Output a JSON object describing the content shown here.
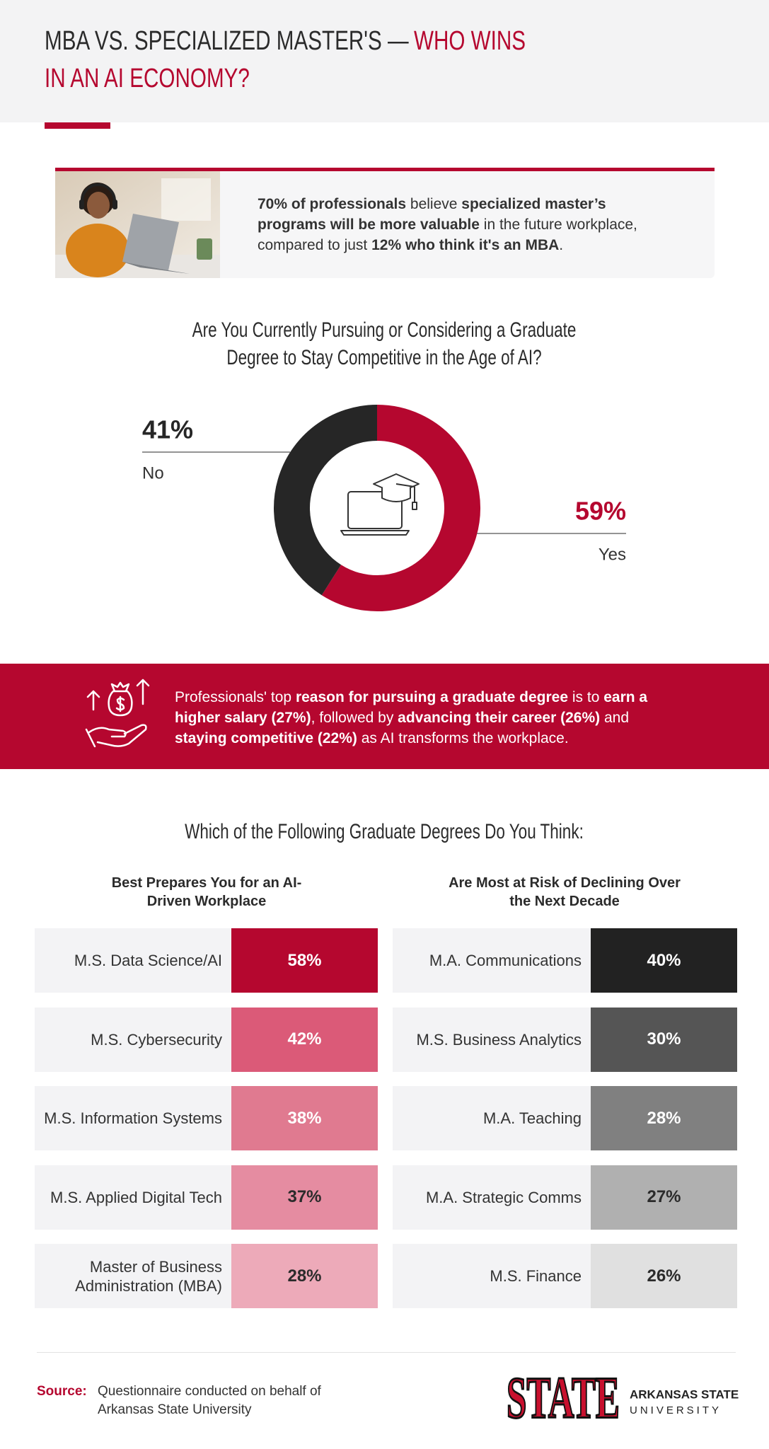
{
  "header": {
    "title_main": "MBA VS. SPECIALIZED MASTER'S —",
    "title_highlight": "WHO WINS IN AN AI ECONOMY?"
  },
  "stat_box": {
    "text": [
      {
        "text": "70% of professionals",
        "bold": true
      },
      {
        "text": " believe ",
        "bold": false
      },
      {
        "text": "specialized master’s programs will be more valuable",
        "bold": true
      },
      {
        "text": " in the future workplace, compared to just ",
        "bold": false
      },
      {
        "text": "12% who think it's an MBA",
        "bold": true
      },
      {
        "text": ".",
        "bold": false
      }
    ]
  },
  "reason_box": {
    "text": [
      {
        "text": "Professionals' top ",
        "bold": false
      },
      {
        "text": "reason for pursuing a graduate degree",
        "bold": true
      },
      {
        "text": " is to ",
        "bold": false
      },
      {
        "text": "earn a higher salary (27%)",
        "bold": true
      },
      {
        "text": ", followed by ",
        "bold": false
      },
      {
        "text": "advancing their career (26%)",
        "bold": true
      },
      {
        "text": " and ",
        "bold": false
      },
      {
        "text": "staying competitive (22%)",
        "bold": true
      },
      {
        "text": " as AI transforms the workplace.",
        "bold": false
      }
    ]
  },
  "section_title": "Which of the Following Graduate Degrees Do You Think:",
  "chart_data": [
    {
      "type": "pie",
      "title": "Are You Currently Pursuing or Considering a Graduate Degree to Stay Competitive in the Age of AI?",
      "categories": [
        "Yes",
        "No"
      ],
      "values": [
        59,
        41
      ],
      "value_labels": [
        "59%",
        "41%"
      ],
      "colors": [
        "#b5072f",
        "#262626"
      ]
    },
    {
      "type": "table",
      "title": "Best Prepares You for an AI-Driven Workplace",
      "categories": [
        "M.S. Data Science/AI",
        "M.S. Cybersecurity",
        "M.S. Information Systems",
        "M.S. Applied Digital Tech",
        "Master of Business Administration (MBA)"
      ],
      "values": [
        58,
        42,
        38,
        37,
        28
      ],
      "value_labels": [
        "58%",
        "42%",
        "38%",
        "37%",
        "28%"
      ],
      "colors": [
        "#b5072f",
        "#db5a78",
        "#e07a90",
        "#e58ca1",
        "#edaab9"
      ],
      "label_colors": [
        "#ffffff",
        "#ffffff",
        "#ffffff",
        "#2b2b2b",
        "#2b2b2b"
      ]
    },
    {
      "type": "table",
      "title": "Are Most at Risk of Declining Over the Next Decade",
      "categories": [
        "M.A. Communications",
        "M.S. Business Analytics",
        "M.A. Teaching",
        "M.A. Strategic Comms",
        "M.S. Finance"
      ],
      "values": [
        40,
        30,
        28,
        27,
        26
      ],
      "value_labels": [
        "40%",
        "30%",
        "28%",
        "27%",
        "26%"
      ],
      "colors": [
        "#222222",
        "#555555",
        "#808080",
        "#b0b0b0",
        "#e0e0e0"
      ],
      "label_colors": [
        "#ffffff",
        "#ffffff",
        "#ffffff",
        "#2b2b2b",
        "#2b2b2b"
      ]
    }
  ],
  "footer": {
    "source_label": "Source:",
    "source_text": "Questionnaire conducted on behalf of Arkansas State University",
    "logo_text": "STATE",
    "university_line1": "ARKANSAS STATE",
    "university_line2": "UNIVERSITY"
  }
}
